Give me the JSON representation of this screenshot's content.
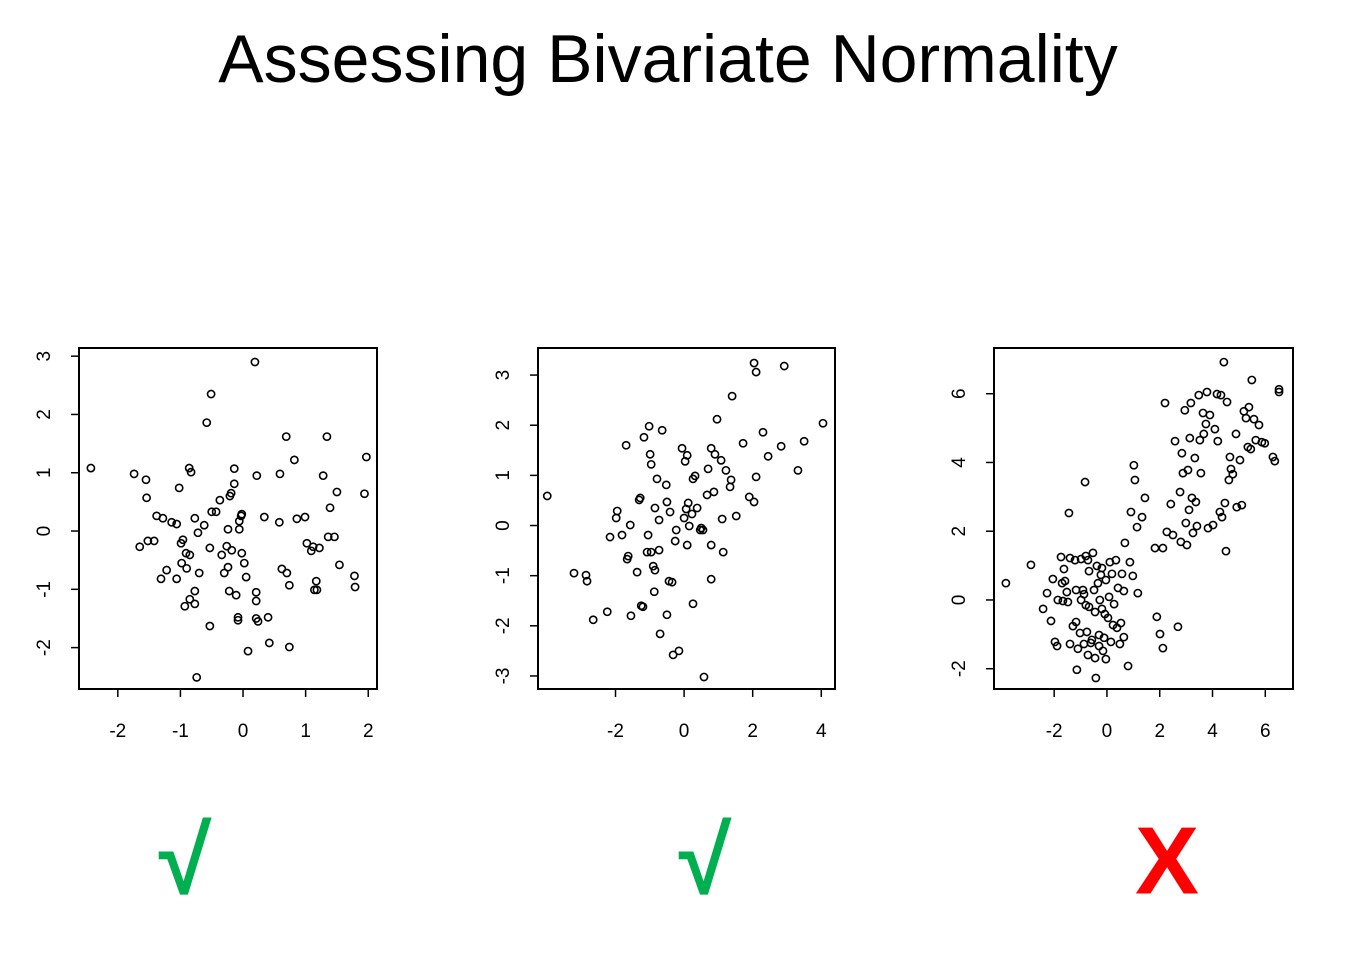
{
  "title": "Assessing Bivariate Normality",
  "chart_data": [
    {
      "type": "scatter",
      "color": "#000000",
      "annotation": "√",
      "annotation_color": "#00b050",
      "xlim": [
        -2.62,
        2.14
      ],
      "ylim": [
        -2.71,
        3.14
      ],
      "xticks": [
        -2,
        -1,
        0,
        1,
        2
      ],
      "yticks": [
        -2,
        -1,
        0,
        1,
        2,
        3
      ],
      "x": [
        -2.43,
        -1.74,
        -1.55,
        -1.54,
        -1.65,
        -1.52,
        -1.42,
        -1.38,
        -1.28,
        -1.31,
        -1.22,
        -1.14,
        -1.06,
        -1.06,
        -1.02,
        -0.99,
        -0.96,
        -0.91,
        -0.85,
        -0.98,
        -0.9,
        -0.86,
        -0.83,
        -0.77,
        -0.72,
        -0.93,
        -0.85,
        -0.77,
        -0.77,
        -0.7,
        -0.74,
        -0.58,
        -0.51,
        -0.53,
        -0.5,
        -0.43,
        -0.62,
        -0.53,
        -0.37,
        -0.34,
        -0.3,
        -0.26,
        -0.24,
        -0.21,
        -0.19,
        -0.18,
        -0.24,
        -0.22,
        -0.14,
        -0.14,
        -0.11,
        -0.06,
        -0.06,
        -0.08,
        -0.08,
        -0.03,
        -0.02,
        -0.02,
        0.02,
        0.05,
        0.08,
        0.19,
        0.22,
        0.21,
        0.21,
        0.21,
        0.24,
        0.34,
        0.4,
        0.42,
        0.59,
        0.58,
        0.62,
        0.69,
        0.7,
        0.74,
        0.74,
        0.82,
        0.86,
        0.99,
        1.02,
        1.09,
        1.12,
        1.14,
        1.17,
        1.22,
        1.18,
        1.28,
        1.34,
        1.36,
        1.39,
        1.46,
        1.5,
        1.54,
        1.78,
        1.79,
        1.94,
        1.97
      ],
      "y": [
        1.08,
        0.98,
        0.88,
        0.57,
        -0.27,
        -0.17,
        -0.17,
        0.26,
        0.22,
        -0.82,
        -0.67,
        0.15,
        0.12,
        -0.82,
        0.74,
        -0.21,
        -0.15,
        -0.38,
        -0.41,
        -0.55,
        -0.64,
        1.08,
        1.01,
        0.22,
        -0.03,
        -1.29,
        -1.17,
        -1.03,
        -1.25,
        -0.72,
        -2.51,
        1.86,
        2.35,
        -0.29,
        0.33,
        0.33,
        0.1,
        -1.63,
        0.53,
        -0.41,
        -0.72,
        -0.26,
        0.03,
        0.6,
        0.65,
        -0.33,
        -0.62,
        -1.03,
        0.81,
        1.07,
        -1.1,
        0.17,
        0.03,
        -1.48,
        -1.53,
        0.26,
        0.29,
        -0.38,
        -0.55,
        -0.79,
        -2.06,
        2.9,
        0.95,
        -1.05,
        -1.2,
        -1.5,
        -1.55,
        0.24,
        -1.48,
        -1.92,
        0.98,
        0.15,
        -0.65,
        1.62,
        -0.72,
        -0.93,
        -1.99,
        1.22,
        0.21,
        0.24,
        -0.21,
        -0.34,
        -0.27,
        -1.01,
        -0.86,
        -0.29,
        -1.01,
        0.95,
        1.62,
        -0.1,
        0.4,
        -0.1,
        0.67,
        -0.58,
        -0.77,
        -0.96,
        0.64,
        1.27
      ]
    },
    {
      "type": "scatter",
      "color": "#000000",
      "annotation": "√",
      "annotation_color": "#00b050",
      "xlim": [
        -4.26,
        4.4
      ],
      "ylim": [
        -3.26,
        3.54
      ],
      "xticks": [
        -2,
        0,
        2,
        4
      ],
      "yticks": [
        -3,
        -2,
        -1,
        0,
        1,
        2,
        3
      ],
      "x": [
        -3.99,
        -3.21,
        -2.86,
        -2.83,
        -2.65,
        -2.24,
        -2.16,
        -1.98,
        -1.95,
        -1.81,
        -1.69,
        -1.66,
        -1.63,
        -1.57,
        -1.55,
        -1.37,
        -1.31,
        -1.28,
        -1.25,
        -1.2,
        -1.17,
        -1.08,
        -1.05,
        -1.02,
        -0.99,
        -0.96,
        -0.9,
        -0.96,
        -0.87,
        -0.85,
        -0.85,
        -0.79,
        -0.73,
        -0.73,
        -0.7,
        -0.64,
        -0.52,
        -0.5,
        -0.5,
        -0.44,
        -0.41,
        -0.35,
        -0.32,
        -0.26,
        -0.23,
        -0.15,
        -0.06,
        0,
        0.03,
        0.06,
        0.09,
        0.09,
        0.12,
        0.15,
        0.23,
        0.26,
        0.32,
        0.26,
        0.38,
        0.47,
        0.5,
        0.55,
        0.58,
        0.67,
        0.7,
        0.79,
        0.79,
        0.79,
        0.87,
        0.9,
        0.96,
        1.08,
        1.11,
        1.14,
        1.22,
        1.34,
        1.37,
        1.4,
        1.52,
        1.72,
        1.9,
        2.04,
        2.04,
        2.1,
        2.1,
        2.3,
        2.45,
        2.83,
        2.92,
        3.32,
        3.5,
        4.05
      ],
      "y": [
        0.59,
        -0.95,
        -0.99,
        -1.11,
        -1.88,
        -1.72,
        -0.23,
        0.15,
        0.29,
        -0.19,
        1.6,
        -0.67,
        -0.61,
        0.01,
        -1.8,
        -0.93,
        0.51,
        0.55,
        -1.6,
        -1.62,
        1.76,
        -0.53,
        -0.19,
        1.98,
        1.42,
        -0.53,
        -0.81,
        1.22,
        -1.32,
        0.35,
        -0.89,
        0.93,
        0.11,
        -0.49,
        -2.16,
        1.9,
        0.81,
        0.47,
        -1.78,
        -1.11,
        0.27,
        -1.13,
        -2.58,
        -0.31,
        -0.09,
        -2.5,
        1.54,
        0.15,
        1.28,
        0.33,
        1.4,
        -0.39,
        0.45,
        -0.01,
        0.23,
        0.93,
        0.99,
        -1.56,
        0.35,
        -0.09,
        -0.05,
        -0.09,
        -3.02,
        0.61,
        1.13,
        1.54,
        -0.39,
        -1.07,
        0.67,
        1.42,
        2.12,
        1.3,
        0.13,
        -0.53,
        1.1,
        0.77,
        0.91,
        2.58,
        0.19,
        1.64,
        0.57,
        0.47,
        3.24,
        3.06,
        0.97,
        1.86,
        1.38,
        1.58,
        3.18,
        1.1,
        1.68,
        2.04
      ]
    },
    {
      "type": "scatter",
      "color": "#000000",
      "annotation": "X",
      "annotation_color": "#ff0000",
      "xlim": [
        -4.28,
        7.05
      ],
      "ylim": [
        -2.59,
        7.33
      ],
      "xticks": [
        -2,
        0,
        2,
        4,
        6
      ],
      "yticks": [
        -2,
        0,
        2,
        4,
        6
      ],
      "x": [
        -3.83,
        -2.88,
        -2.42,
        -2.27,
        -2.12,
        -2.05,
        -1.97,
        -1.89,
        -1.86,
        -1.74,
        -1.7,
        -1.67,
        -1.63,
        -1.59,
        -1.52,
        -1.48,
        -1.44,
        -1.4,
        -1.4,
        -1.29,
        -1.21,
        -1.17,
        -1.17,
        -1.14,
        -1.1,
        -1.02,
        -0.98,
        -0.98,
        -0.91,
        -0.87,
        -0.87,
        -0.83,
        -0.8,
        -0.8,
        -0.76,
        -0.72,
        -0.72,
        -0.68,
        -0.68,
        -0.61,
        -0.57,
        -0.53,
        -0.49,
        -0.45,
        -0.45,
        -0.42,
        -0.38,
        -0.34,
        -0.3,
        -0.3,
        -0.27,
        -0.23,
        -0.19,
        -0.19,
        -0.15,
        -0.11,
        -0.08,
        -0.04,
        -0.04,
        0.04,
        0.08,
        0.11,
        0.15,
        0.19,
        0.23,
        0.27,
        0.34,
        0.38,
        0.42,
        0.49,
        0.53,
        0.57,
        0.64,
        0.64,
        0.68,
        0.8,
        0.87,
        0.91,
        0.98,
        1.02,
        1.06,
        1.14,
        1.17,
        1.33,
        1.44,
        1.82,
        1.89,
        2.01,
        2.12,
        2.12,
        2.2,
        2.27,
        2.42,
        2.5,
        2.58,
        2.69,
        2.77,
        2.8,
        2.84,
        2.88,
        2.95,
        2.99,
        3.03,
        3.07,
        3.11,
        3.14,
        3.18,
        3.22,
        3.26,
        3.33,
        3.37,
        3.41,
        3.48,
        3.52,
        3.56,
        3.64,
        3.67,
        3.75,
        3.79,
        3.83,
        3.9,
        4.02,
        4.09,
        4.17,
        4.2,
        4.28,
        4.32,
        4.36,
        4.43,
        4.47,
        4.51,
        4.55,
        4.62,
        4.66,
        4.7,
        4.77,
        4.89,
        4.92,
        5.04,
        5.11,
        5.19,
        5.27,
        5.34,
        5.38,
        5.45,
        5.49,
        5.57,
        5.64,
        5.76,
        5.87,
        5.98,
        6.29,
        6.36,
        6.52,
        6.52
      ],
      "y": [
        0.49,
        1.02,
        -0.26,
        0.2,
        -0.61,
        0.61,
        -1.22,
        -1.34,
        0,
        1.25,
        0.49,
        -0.03,
        0.9,
        0.55,
        0.23,
        -0.06,
        2.53,
        1.22,
        -1.28,
        -0.76,
        1.16,
        -0.64,
        0.29,
        -2.03,
        -1.42,
        -0.96,
        1.19,
        0,
        0.29,
        0.17,
        -1.28,
        3.43,
        1.28,
        -0.15,
        -0.93,
        1.16,
        -1.6,
        0.84,
        -0.2,
        -1.25,
        -1.16,
        1.37,
        0.29,
        -0.35,
        -1.69,
        -2.27,
        0.99,
        0.49,
        -1.02,
        -1.34,
        0,
        0.73,
        0.93,
        -0.26,
        -1.48,
        -1.1,
        -0.41,
        0.58,
        -1.72,
        -0.52,
        0.09,
        1.1,
        -1.22,
        0.76,
        -0.73,
        -0.12,
        1.16,
        -0.81,
        0.35,
        -1.28,
        -0.67,
        0.76,
        0.26,
        -1.08,
        1.66,
        -1.92,
        1.1,
        2.56,
        0.7,
        3.92,
        3.49,
        2.12,
        0.2,
        2.41,
        2.97,
        1.51,
        -0.49,
        -0.99,
        -1.4,
        1.51,
        5.73,
        1.98,
        2.79,
        1.89,
        4.62,
        -0.78,
        3.14,
        1.69,
        4.27,
        3.69,
        5.52,
        2.24,
        1.6,
        3.78,
        2.62,
        4.71,
        5.73,
        2.97,
        1.95,
        4.13,
        2.85,
        2.15,
        5.96,
        4.65,
        3.69,
        5.44,
        4.83,
        5.12,
        6.05,
        2.09,
        5.38,
        2.18,
        4.97,
        5.99,
        4.62,
        2.56,
        5.96,
        2.41,
        6.92,
        2.82,
        1.42,
        5.76,
        3.49,
        4.16,
        3.81,
        3.66,
        4.83,
        2.7,
        4.07,
        2.76,
        5.49,
        5.29,
        4.45,
        5.61,
        4.39,
        6.4,
        5.26,
        4.65,
        5.09,
        4.59,
        4.56,
        4.16,
        4.04,
        6.13,
        6.05
      ]
    }
  ]
}
